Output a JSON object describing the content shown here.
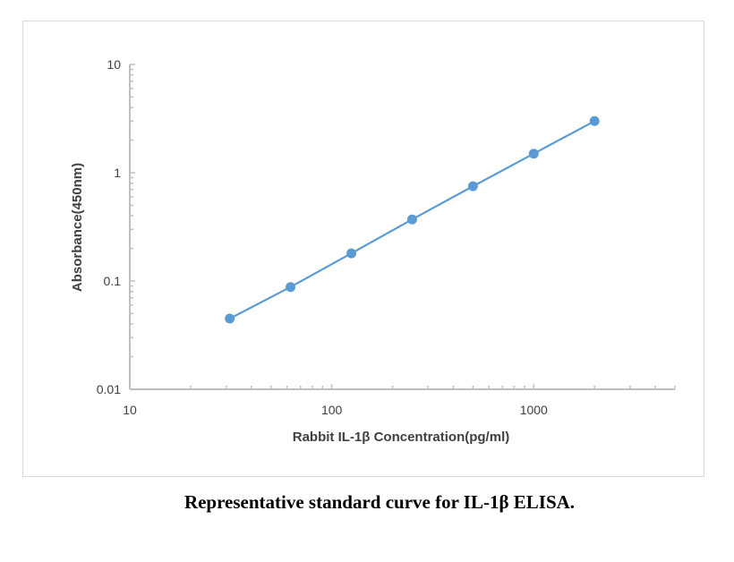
{
  "caption": "Representative standard curve for IL-1β  ELISA.",
  "chart_data": {
    "type": "scatter",
    "xlabel": "Rabbit IL-1β Concentration(pg/ml)",
    "ylabel": "Absorbance(450nm)",
    "xscale": "log",
    "yscale": "log",
    "xlim": [
      10,
      5000
    ],
    "ylim": [
      0.01,
      10
    ],
    "x_ticks": [
      "10",
      "100",
      "1000"
    ],
    "y_ticks": [
      "0.01",
      "0.1",
      "1",
      "10"
    ],
    "grid": false,
    "legend": "none",
    "series": [
      {
        "x": [
          31.25,
          62.5,
          125,
          250,
          500,
          1000,
          2000
        ],
        "y": [
          0.045,
          0.088,
          0.18,
          0.37,
          0.75,
          1.5,
          3.0
        ],
        "line": true,
        "markers": true
      }
    ],
    "colors": {
      "series": "#5b9bd5",
      "axis": "#bfbfbf",
      "text": "#404040"
    }
  }
}
